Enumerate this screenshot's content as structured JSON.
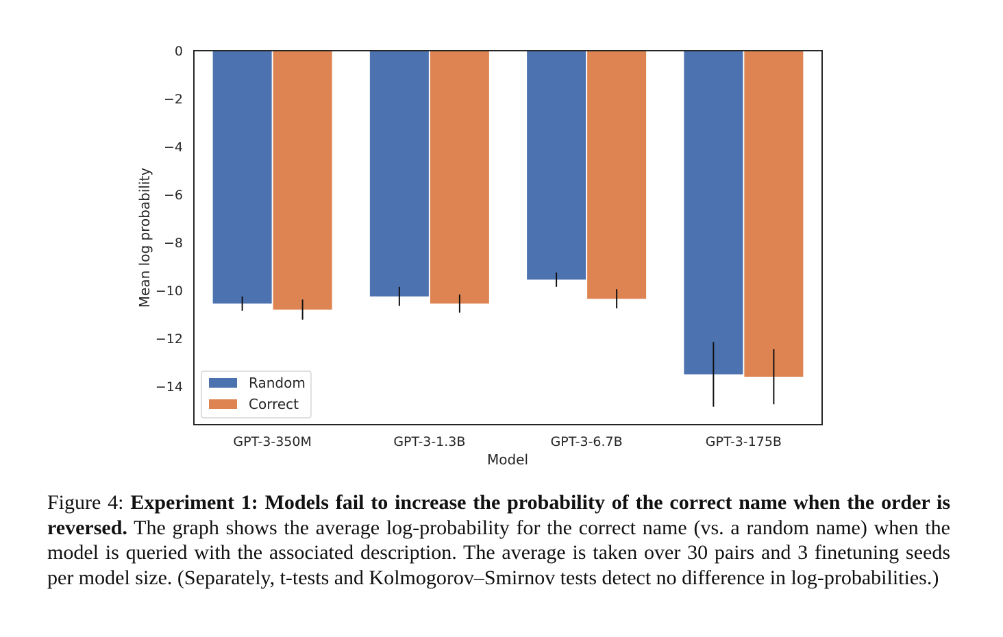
{
  "chart_data": {
    "type": "bar",
    "xlabel": "Model",
    "ylabel": "Mean log probability",
    "categories": [
      "GPT-3-350M",
      "GPT-3-1.3B",
      "GPT-3-6.7B",
      "GPT-3-175B"
    ],
    "series": [
      {
        "name": "Random",
        "color": "#4C72B0",
        "values": [
          -10.55,
          -10.25,
          -9.55,
          -13.5
        ],
        "error": [
          0.3,
          0.4,
          0.3,
          1.35
        ]
      },
      {
        "name": "Correct",
        "color": "#DD8452",
        "values": [
          -10.8,
          -10.55,
          -10.35,
          -13.6
        ],
        "error": [
          0.42,
          0.38,
          0.4,
          1.15
        ]
      }
    ],
    "ylim": [
      -15.6,
      0
    ],
    "yticks": [
      0,
      -2,
      -4,
      -6,
      -8,
      -10,
      -12,
      -14
    ],
    "ytick_labels": [
      "0",
      "−2",
      "−4",
      "−6",
      "−8",
      "−10",
      "−12",
      "−14"
    ],
    "grid": false,
    "legend_position": "lower-left"
  },
  "caption": {
    "label": "Figure 4: ",
    "bold": "Experiment 1: Models fail to increase the probability of the correct name when the order is reversed.",
    "text": " The graph shows the average log-probability for the correct name (vs. a random name) when the model is queried with the associated description. The average is taken over 30 pairs and 3 finetuning seeds per model size. (Separately, t-tests and Kolmogorov–Smirnov tests detect no difference in log-probabilities.)"
  }
}
